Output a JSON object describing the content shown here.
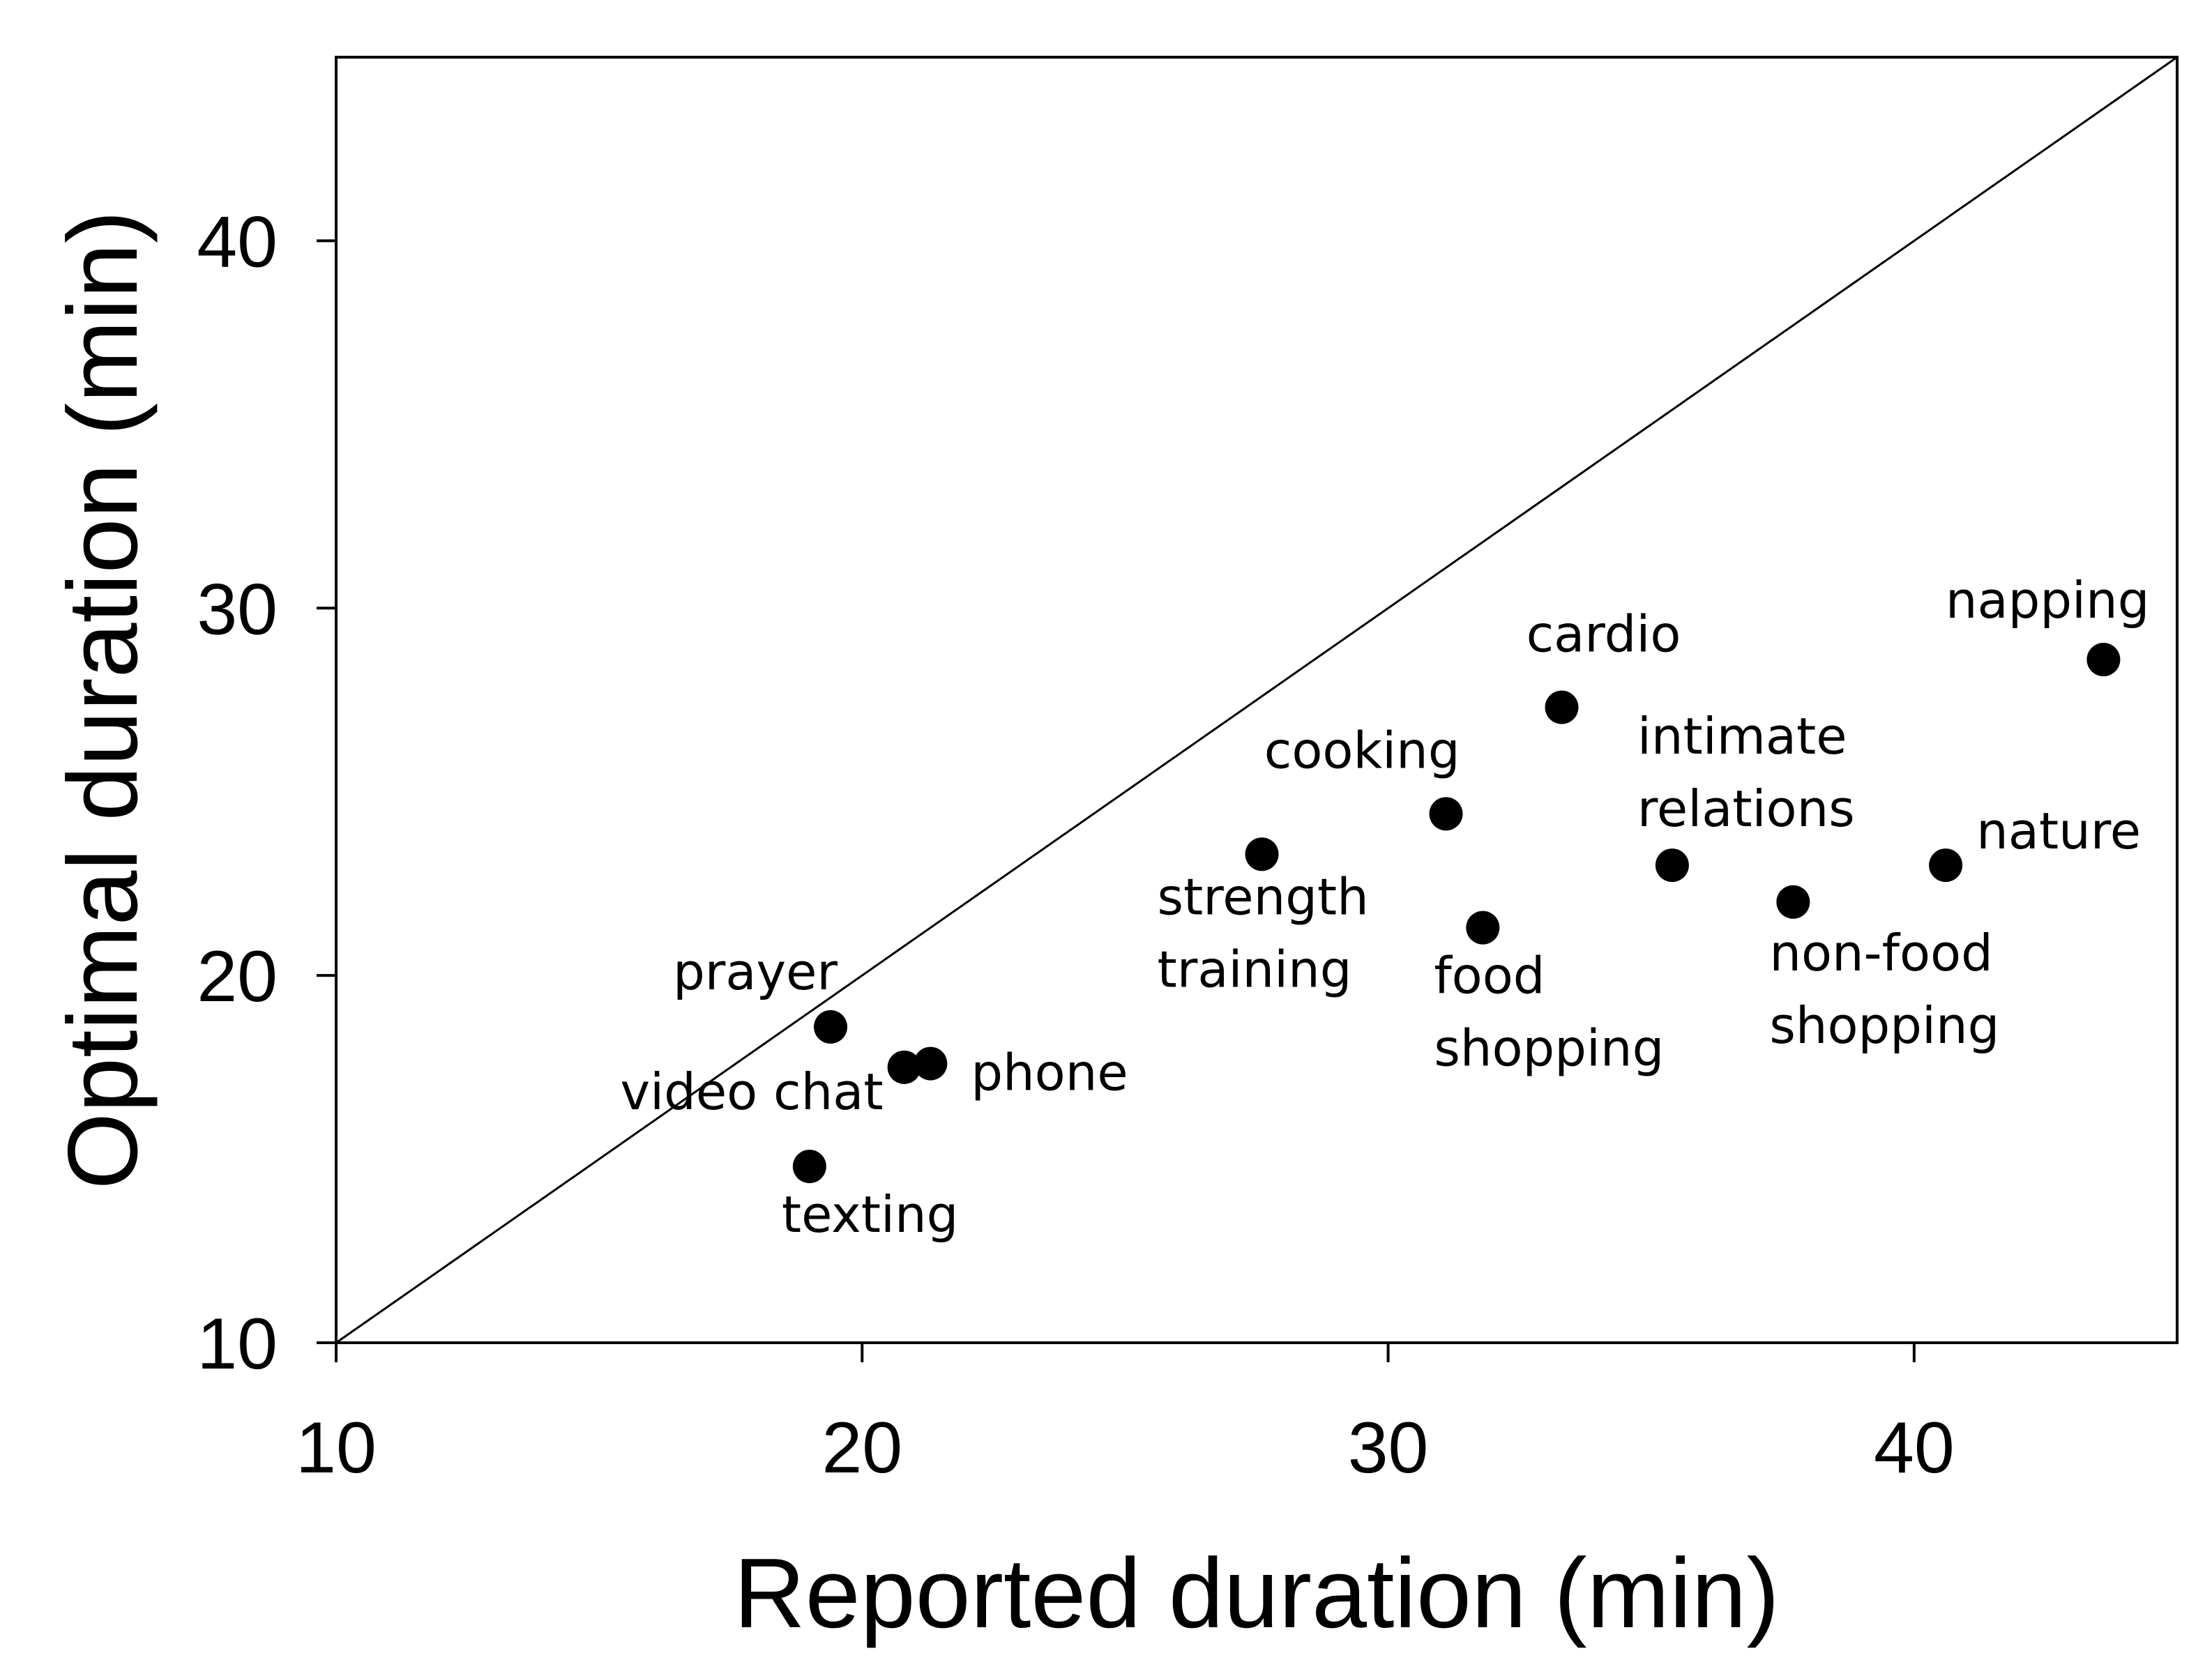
{
  "chart_data": {
    "type": "scatter",
    "title": "",
    "xlabel": "Reported duration (min)",
    "ylabel": "Optimal duration (min)",
    "xlim": [
      10,
      45
    ],
    "ylim": [
      10,
      45
    ],
    "xticks": [
      10,
      20,
      30,
      40
    ],
    "yticks": [
      10,
      20,
      30,
      40
    ],
    "grid": false,
    "reference_line": {
      "kind": "identity",
      "from": [
        10,
        10
      ],
      "to": [
        45,
        45
      ]
    },
    "points": [
      {
        "label": "prayer",
        "label_lines": [
          "prayer"
        ],
        "x": 19.4,
        "y": 18.6
      },
      {
        "label": "video chat",
        "label_lines": [
          "video chat"
        ],
        "x": 20.8,
        "y": 17.5
      },
      {
        "label": "phone",
        "label_lines": [
          "phone"
        ],
        "x": 21.3,
        "y": 17.6
      },
      {
        "label": "texting",
        "label_lines": [
          "texting"
        ],
        "x": 19.0,
        "y": 14.8
      },
      {
        "label": "strength training",
        "label_lines": [
          "strength",
          "training"
        ],
        "x": 27.6,
        "y": 23.3
      },
      {
        "label": "cooking",
        "label_lines": [
          "cooking"
        ],
        "x": 31.1,
        "y": 24.4
      },
      {
        "label": "food shopping",
        "label_lines": [
          "food",
          "shopping"
        ],
        "x": 31.8,
        "y": 21.3
      },
      {
        "label": "cardio",
        "label_lines": [
          "cardio"
        ],
        "x": 33.3,
        "y": 27.3
      },
      {
        "label": "intimate relations",
        "label_lines": [
          "intimate",
          "relations"
        ],
        "x": 35.4,
        "y": 23.0
      },
      {
        "label": "non-food shopping",
        "label_lines": [
          "non-food",
          "shopping"
        ],
        "x": 37.7,
        "y": 22.0
      },
      {
        "label": "nature",
        "label_lines": [
          "nature"
        ],
        "x": 40.6,
        "y": 23.0
      },
      {
        "label": "napping",
        "label_lines": [
          "napping"
        ],
        "x": 43.6,
        "y": 28.6
      }
    ]
  }
}
